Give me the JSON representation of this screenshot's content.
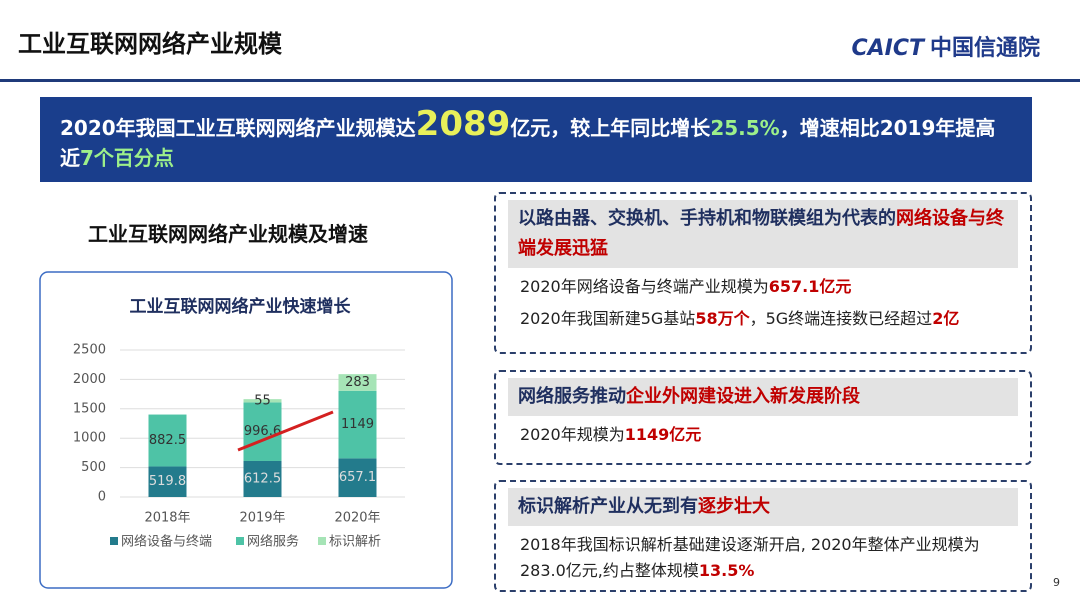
{
  "header": {
    "title": "工业互联网网络产业规模",
    "logo_en": "CAICT",
    "logo_cn": "中国信通院"
  },
  "banner": {
    "segments": [
      {
        "text": "2020年我国工业互联网网络产业规模达",
        "style": "plain"
      },
      {
        "text": "2089",
        "style": "big"
      },
      {
        "text": "亿元，较上年同比增长",
        "style": "plain"
      },
      {
        "text": "25.5%",
        "style": "highlight"
      },
      {
        "text": "，增速相比2019年提高近",
        "style": "plain"
      },
      {
        "text": "7个百分点",
        "style": "highlight"
      }
    ]
  },
  "section_title": "工业互联网网络产业规模及增速",
  "chart_data": {
    "type": "stacked-bar",
    "title": "工业互联网网络产业快速增长",
    "categories": [
      "2018年",
      "2019年",
      "2020年"
    ],
    "series": [
      {
        "name": "网络设备与终端",
        "color": "#237b8c",
        "values": [
          519.8,
          612.5,
          657.1
        ]
      },
      {
        "name": "网络服务",
        "color": "#4ec3a6",
        "values": [
          882.5,
          996.6,
          1149
        ]
      },
      {
        "name": "标识解析",
        "color": "#a6e4b6",
        "values": [
          null,
          55,
          283
        ]
      }
    ],
    "ylim": [
      0,
      2500
    ],
    "yticks": [
      0,
      500,
      1000,
      1500,
      2000,
      2500
    ],
    "grid": true,
    "legend": "bottom"
  },
  "panels": [
    {
      "heading": [
        {
          "text": "以路由器、交换机、手持机和物联模组为代表的",
          "style": "plain"
        },
        {
          "text": "网络设备与终端发展迅猛",
          "style": "highlight"
        }
      ],
      "lines": [
        [
          {
            "text": "2020年网络设备与终端产业规模为",
            "style": "plain"
          },
          {
            "text": "657.1亿元",
            "style": "highlight"
          }
        ],
        [
          {
            "text": "2020年我国新建5G基站",
            "style": "plain"
          },
          {
            "text": "58万个",
            "style": "highlight"
          },
          {
            "text": "，5G终端连接数已经超过",
            "style": "plain"
          },
          {
            "text": "2亿",
            "style": "highlight"
          }
        ]
      ]
    },
    {
      "heading": [
        {
          "text": "网络服务推动",
          "style": "plain"
        },
        {
          "text": "企业外网建设进入新发展阶段",
          "style": "highlight"
        }
      ],
      "lines": [
        [
          {
            "text": "2020年规模为",
            "style": "plain"
          },
          {
            "text": "1149亿元",
            "style": "highlight"
          }
        ]
      ]
    },
    {
      "heading": [
        {
          "text": "标识解析产业从无到有",
          "style": "plain"
        },
        {
          "text": "逐步壮大",
          "style": "highlight"
        }
      ],
      "lines": [
        [
          {
            "text": "2018年我国标识解析基础建设逐渐开启, 2020年整体产业规模为283.0亿元,约占整体规模",
            "style": "plain"
          },
          {
            "text": "13.5%",
            "style": "highlight"
          }
        ]
      ]
    }
  ],
  "page_number": "9"
}
